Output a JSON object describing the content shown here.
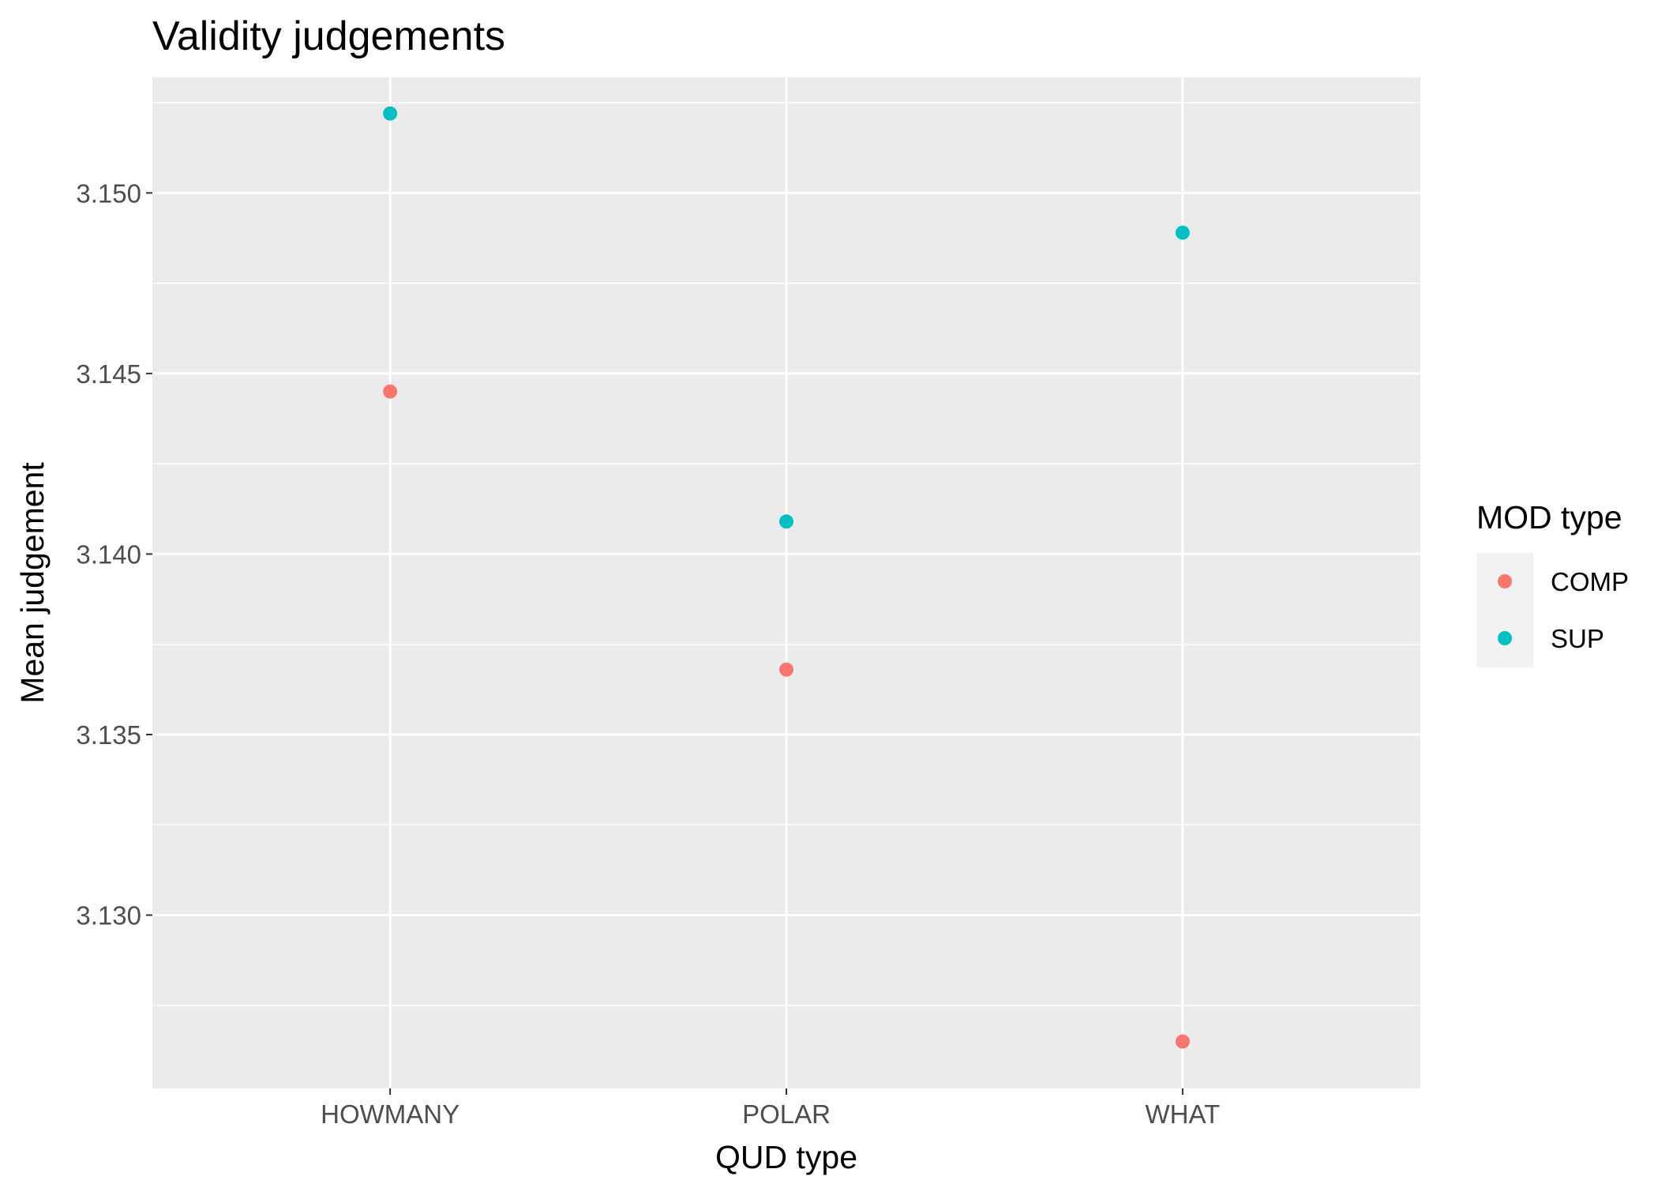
{
  "chart_data": {
    "type": "scatter",
    "title": "Validity judgements",
    "xlabel": "QUD type",
    "ylabel": "Mean judgement",
    "categories": [
      "HOWMANY",
      "POLAR",
      "WHAT"
    ],
    "ylim": [
      3.1252,
      3.1532
    ],
    "yticks": [
      3.13,
      3.135,
      3.14,
      3.145,
      3.15
    ],
    "ytick_labels": [
      "3.130",
      "3.135",
      "3.140",
      "3.145",
      "3.150"
    ],
    "grid": true,
    "legend": {
      "title": "MOD type",
      "position": "right"
    },
    "series": [
      {
        "name": "COMP",
        "color": "#F8766D",
        "values": [
          3.1445,
          3.1368,
          3.1265
        ]
      },
      {
        "name": "SUP",
        "color": "#00BFC4",
        "values": [
          3.1522,
          3.1409,
          3.1489
        ]
      }
    ]
  }
}
